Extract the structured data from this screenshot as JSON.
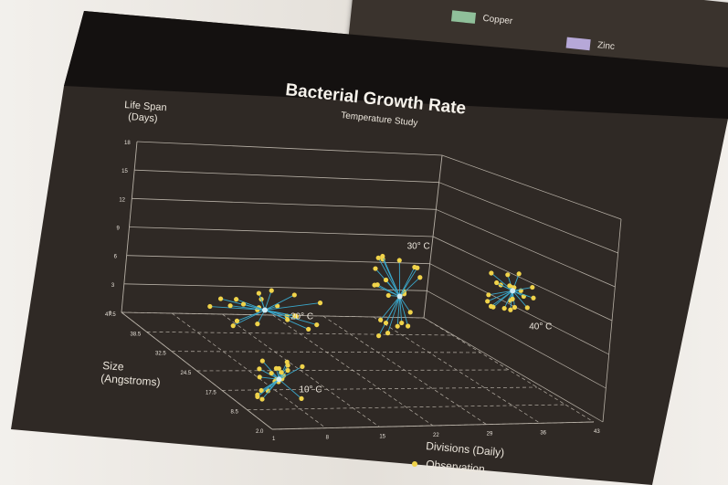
{
  "back_legend": {
    "items": [
      {
        "label": "Copper",
        "color": "#8fc09a"
      },
      {
        "label": "Zinc",
        "color": "#b6a8d8"
      }
    ]
  },
  "chart_data": {
    "type": "scatter",
    "projection": "3d",
    "title": "Bacterial Growth Rate",
    "subtitle": "Temperature Study",
    "zlabel_line1": "Life Span",
    "zlabel_line2": "(Days)",
    "ylabel_line1": "Size",
    "ylabel_line2": "(Angstroms)",
    "xlabel": "Divisions (Daily)",
    "z_ticks": [
      "0",
      "3",
      "6",
      "9",
      "12",
      "15",
      "18"
    ],
    "y_ticks": [
      "47.5",
      "38.5",
      "32.5",
      "24.5",
      "17.5",
      "8.5",
      "2.0"
    ],
    "x_ticks": [
      "1",
      "8",
      "15",
      "22",
      "29",
      "36",
      "43"
    ],
    "grid": true,
    "legend_position": "bottom",
    "legend": [
      {
        "label": "Observation",
        "marker": "dot",
        "color": "#f0d34a"
      }
    ],
    "clusters": [
      {
        "label": "10° C",
        "center": {
          "x": 6,
          "y": 12,
          "z": 2.5
        }
      },
      {
        "label": "20° C",
        "center": {
          "x": 12,
          "y": 30,
          "z": 5
        }
      },
      {
        "label": "30° C",
        "center": {
          "x": 25,
          "y": 20,
          "z": 9
        }
      },
      {
        "label": "40° C",
        "center": {
          "x": 39,
          "y": 18,
          "z": 10
        }
      }
    ]
  }
}
